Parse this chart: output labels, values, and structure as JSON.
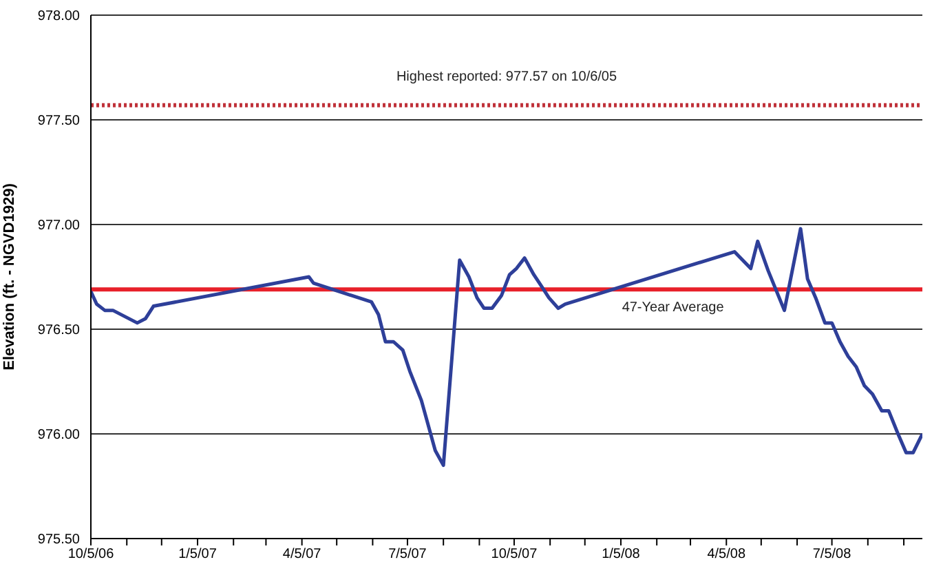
{
  "chart_data": {
    "type": "line",
    "ylabel": "Elevation (ft. - NGVD1929)",
    "x": [
      "2006-10-05",
      "2006-10-10",
      "2006-10-17",
      "2006-10-24",
      "2006-11-14",
      "2006-11-21",
      "2006-11-28",
      "2007-04-11",
      "2007-04-15",
      "2007-06-04",
      "2007-06-10",
      "2007-06-16",
      "2007-06-23",
      "2007-07-01",
      "2007-07-07",
      "2007-07-17",
      "2007-07-29",
      "2007-08-05",
      "2007-08-19",
      "2007-08-27",
      "2007-09-03",
      "2007-09-09",
      "2007-09-16",
      "2007-09-24",
      "2007-10-01",
      "2007-10-07",
      "2007-10-14",
      "2007-10-22",
      "2007-10-28",
      "2007-11-04",
      "2007-11-12",
      "2007-11-18",
      "2008-04-12",
      "2008-04-26",
      "2008-05-02",
      "2008-05-11",
      "2008-05-25",
      "2008-06-08",
      "2008-06-14",
      "2008-06-21",
      "2008-06-29",
      "2008-07-05",
      "2008-07-12",
      "2008-07-19",
      "2008-07-26",
      "2008-08-02",
      "2008-08-09",
      "2008-08-17",
      "2008-08-23",
      "2008-08-31",
      "2008-09-07",
      "2008-09-13",
      "2008-09-21"
    ],
    "series": [
      {
        "color": "#2e3f99",
        "values": [
          976.68,
          976.62,
          976.59,
          976.59,
          976.53,
          976.55,
          976.61,
          976.75,
          976.72,
          976.63,
          976.57,
          976.44,
          976.44,
          976.4,
          976.3,
          976.16,
          975.92,
          975.85,
          976.83,
          976.75,
          976.65,
          976.6,
          976.6,
          976.66,
          976.76,
          976.79,
          976.84,
          976.76,
          976.71,
          976.65,
          976.6,
          976.62,
          976.87,
          976.79,
          976.92,
          976.78,
          976.59,
          976.98,
          976.74,
          976.65,
          976.53,
          976.53,
          976.44,
          976.37,
          976.32,
          976.23,
          976.19,
          976.11,
          976.11,
          976.0,
          975.91,
          975.91,
          976.0
        ]
      }
    ],
    "xlim": [
      "2006-10-05",
      "2008-09-21"
    ],
    "xticks": [
      {
        "value": "2006-10-05",
        "label": "10/5/06"
      },
      {
        "value": "2006-11-05",
        "label": null
      },
      {
        "value": "2006-12-05",
        "label": null
      },
      {
        "value": "2007-01-05",
        "label": "1/5/07"
      },
      {
        "value": "2007-02-05",
        "label": null
      },
      {
        "value": "2007-03-05",
        "label": null
      },
      {
        "value": "2007-04-05",
        "label": "4/5/07"
      },
      {
        "value": "2007-05-05",
        "label": null
      },
      {
        "value": "2007-06-05",
        "label": null
      },
      {
        "value": "2007-07-05",
        "label": "7/5/07"
      },
      {
        "value": "2007-08-05",
        "label": null
      },
      {
        "value": "2007-09-05",
        "label": null
      },
      {
        "value": "2007-10-05",
        "label": "10/5/07"
      },
      {
        "value": "2007-11-05",
        "label": null
      },
      {
        "value": "2007-12-05",
        "label": null
      },
      {
        "value": "2008-01-05",
        "label": "1/5/08"
      },
      {
        "value": "2008-02-05",
        "label": null
      },
      {
        "value": "2008-03-05",
        "label": null
      },
      {
        "value": "2008-04-05",
        "label": "4/5/08"
      },
      {
        "value": "2008-05-05",
        "label": null
      },
      {
        "value": "2008-06-05",
        "label": null
      },
      {
        "value": "2008-07-05",
        "label": "7/5/08"
      },
      {
        "value": "2008-08-05",
        "label": null
      },
      {
        "value": "2008-09-05",
        "label": null
      }
    ],
    "ylim": [
      975.5,
      978.0
    ],
    "yticks": [
      {
        "value": 975.5,
        "label": "975.50"
      },
      {
        "value": 976.0,
        "label": "976.00"
      },
      {
        "value": 976.5,
        "label": "976.50"
      },
      {
        "value": 977.0,
        "label": "977.00"
      },
      {
        "value": 977.5,
        "label": "977.50"
      },
      {
        "value": 978.0,
        "label": "978.00"
      }
    ],
    "ref_lines": [
      {
        "axis": "y",
        "value": 977.57,
        "label": "Highest reported:  977.57 on 10/6/05",
        "color": "#c0323a",
        "line_style": "dotted"
      },
      {
        "axis": "y",
        "value": 976.69,
        "label": "47-Year Average",
        "color": "#e8202a",
        "line_style": "solid"
      }
    ],
    "grid": "y",
    "marker": "none",
    "line_style": "solid"
  }
}
